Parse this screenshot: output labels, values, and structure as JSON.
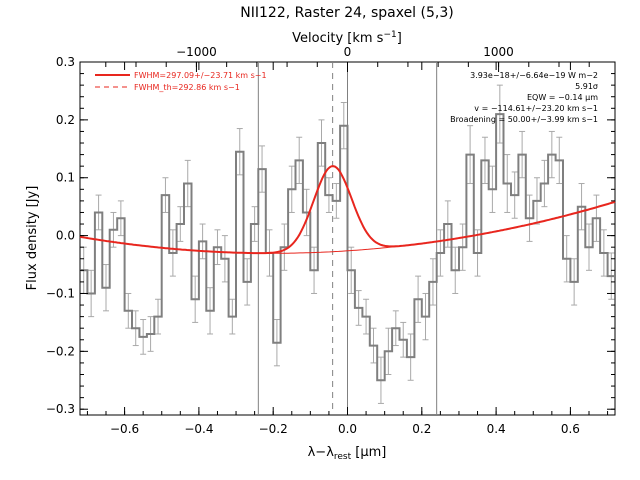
{
  "colors": {
    "spectrum": "#7f7f7f",
    "errorbar": "#a9a9a9",
    "fit": "#e8261e",
    "vline": "#808080",
    "axis": "#000000"
  },
  "chart_data": {
    "type": "line",
    "title": "NII122, Raster 24, spaxel (5,3)",
    "xlabel": "λ−λrest [μm]",
    "ylabel": "Flux density [Jy]",
    "top_xlabel": "Velocity [km s−1]",
    "xlim": [
      -0.72,
      0.72
    ],
    "ylim": [
      -0.31,
      0.3
    ],
    "x_ticks": [
      -0.6,
      -0.4,
      -0.2,
      0.0,
      0.2,
      0.4,
      0.6
    ],
    "x_tick_labels": [
      "−0.6",
      "−0.4",
      "−0.2",
      "0.0",
      "0.2",
      "0.4",
      "0.6"
    ],
    "y_ticks": [
      -0.3,
      -0.2,
      -0.1,
      0.0,
      0.1,
      0.2,
      0.3
    ],
    "y_tick_labels": [
      "−0.3",
      "−0.2",
      "−0.1",
      "0.0",
      "0.1",
      "0.2",
      "0.3"
    ],
    "top_ticks_kms": [
      -1000,
      0,
      1000
    ],
    "top_tick_labels": [
      "−1000",
      "0",
      "1000"
    ],
    "rest_wavelength_um": 121.9,
    "vertical_lines_x": [
      -0.24,
      0.24
    ],
    "dashed_line_x": -0.04,
    "legend": [
      {
        "label": "FWHM=297.09+/−23.71 km s−1",
        "style": "solid",
        "color": "#e8261e"
      },
      {
        "label": "FWHM_th=292.86 km s−1",
        "style": "dashed",
        "color": "#e8261e"
      }
    ],
    "annotations": [
      "3.93e−18+/−6.64e−19 W m−2",
      "5.91σ",
      "EQW = −0.14 μm",
      "v = −114.61+/−23.20 km s−1",
      "Broadening = 50.00+/−3.99 km s−1"
    ],
    "spectrum": {
      "name": "data",
      "x": [
        -0.71,
        -0.69,
        -0.67,
        -0.65,
        -0.63,
        -0.61,
        -0.59,
        -0.57,
        -0.55,
        -0.53,
        -0.51,
        -0.49,
        -0.47,
        -0.45,
        -0.43,
        -0.41,
        -0.39,
        -0.37,
        -0.35,
        -0.33,
        -0.31,
        -0.29,
        -0.27,
        -0.25,
        -0.23,
        -0.21,
        -0.19,
        -0.17,
        -0.15,
        -0.13,
        -0.11,
        -0.09,
        -0.07,
        -0.05,
        -0.03,
        -0.01,
        0.01,
        0.03,
        0.05,
        0.07,
        0.09,
        0.11,
        0.13,
        0.15,
        0.17,
        0.19,
        0.21,
        0.23,
        0.25,
        0.27,
        0.29,
        0.31,
        0.33,
        0.35,
        0.37,
        0.39,
        0.41,
        0.43,
        0.45,
        0.47,
        0.49,
        0.51,
        0.53,
        0.55,
        0.57,
        0.59,
        0.61,
        0.63,
        0.65,
        0.67,
        0.69,
        0.71
      ],
      "y": [
        -0.06,
        -0.1,
        0.04,
        -0.09,
        0.01,
        0.03,
        -0.13,
        -0.16,
        -0.175,
        -0.17,
        -0.14,
        0.07,
        -0.03,
        0.02,
        0.09,
        -0.11,
        -0.01,
        -0.13,
        -0.02,
        -0.04,
        -0.14,
        0.145,
        -0.08,
        0.02,
        0.115,
        -0.03,
        -0.185,
        -0.02,
        0.08,
        0.13,
        0.04,
        -0.06,
        0.16,
        0.07,
        0.06,
        0.19,
        -0.06,
        -0.125,
        -0.14,
        -0.19,
        -0.25,
        -0.2,
        -0.16,
        -0.18,
        -0.21,
        -0.11,
        -0.14,
        -0.08,
        -0.03,
        0.02,
        -0.06,
        -0.02,
        0.14,
        -0.03,
        0.13,
        0.08,
        0.21,
        0.09,
        0.07,
        0.14,
        0.03,
        0.06,
        0.09,
        0.14,
        0.13,
        -0.04,
        -0.08,
        0.05,
        -0.02,
        0.03,
        -0.03,
        -0.07
      ],
      "err": [
        0.04,
        0.04,
        0.03,
        0.04,
        0.03,
        0.03,
        0.03,
        0.03,
        0.03,
        0.03,
        0.03,
        0.03,
        0.04,
        0.03,
        0.04,
        0.04,
        0.03,
        0.04,
        0.03,
        0.04,
        0.03,
        0.04,
        0.04,
        0.03,
        0.04,
        0.04,
        0.04,
        0.04,
        0.04,
        0.04,
        0.04,
        0.04,
        0.04,
        0.03,
        0.03,
        0.04,
        0.04,
        0.03,
        0.03,
        0.03,
        0.04,
        0.04,
        0.03,
        0.03,
        0.04,
        0.04,
        0.04,
        0.04,
        0.04,
        0.04,
        0.04,
        0.04,
        0.05,
        0.04,
        0.04,
        0.04,
        0.05,
        0.05,
        0.04,
        0.04,
        0.04,
        0.04,
        0.04,
        0.04,
        0.04,
        0.04,
        0.04,
        0.04,
        0.04,
        0.04,
        0.04,
        0.04
      ]
    },
    "model": {
      "name": "fit",
      "baseline": {
        "a0": -0.0305,
        "a1": 0.0,
        "a2": 0.105,
        "center": -0.2
      },
      "gaussian": {
        "amplitude": 0.148,
        "center": -0.04,
        "sigma": 0.051
      }
    }
  }
}
